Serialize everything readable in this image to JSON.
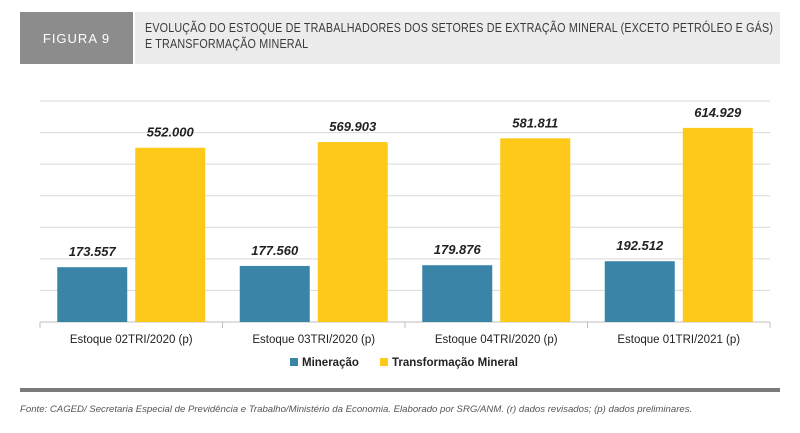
{
  "figure": {
    "tag": "FIGURA 9",
    "title": "EVOLUÇÃO DO ESTOQUE DE TRABALHADORES DOS SETORES DE EXTRAÇÃO MINERAL (EXCETO PETRÓLEO E GÁS) E TRANSFORMAÇÃO MINERAL"
  },
  "source_note": "Fonte: CAGED/ Secretaria Especial de Previdência e Trabalho/Ministério da Economia. Elaborado por SRG/ANM. (r) dados revisados; (p) dados preliminares.",
  "colors": {
    "mineracao": "#3a84a8",
    "transformacao": "#ffc91a",
    "grid": "#d9d9d9",
    "axis": "#bfbfbf",
    "label": "#222222"
  },
  "chart_data": {
    "type": "bar",
    "title": "",
    "xlabel": "",
    "ylabel": "",
    "categories": [
      "Estoque 02TRI/2020 (p)",
      "Estoque 03TRI/2020 (p)",
      "Estoque 04TRI/2020 (p)",
      "Estoque 01TRI/2021 (p)"
    ],
    "series": [
      {
        "name": "Mineração",
        "color_key": "mineracao",
        "values": [
          173557,
          177560,
          179876,
          192512
        ],
        "labels": [
          "173.557",
          "177.560",
          "179.876",
          "192.512"
        ]
      },
      {
        "name": "Transformação Mineral",
        "color_key": "transformacao",
        "values": [
          552000,
          569903,
          581811,
          614929
        ],
        "labels": [
          "552.000",
          "569.903",
          "581.811",
          "614.929"
        ]
      }
    ],
    "ylim": [
      0,
      700000
    ],
    "grid_step": 100000,
    "grid": true,
    "legend_position": "bottom-center"
  }
}
